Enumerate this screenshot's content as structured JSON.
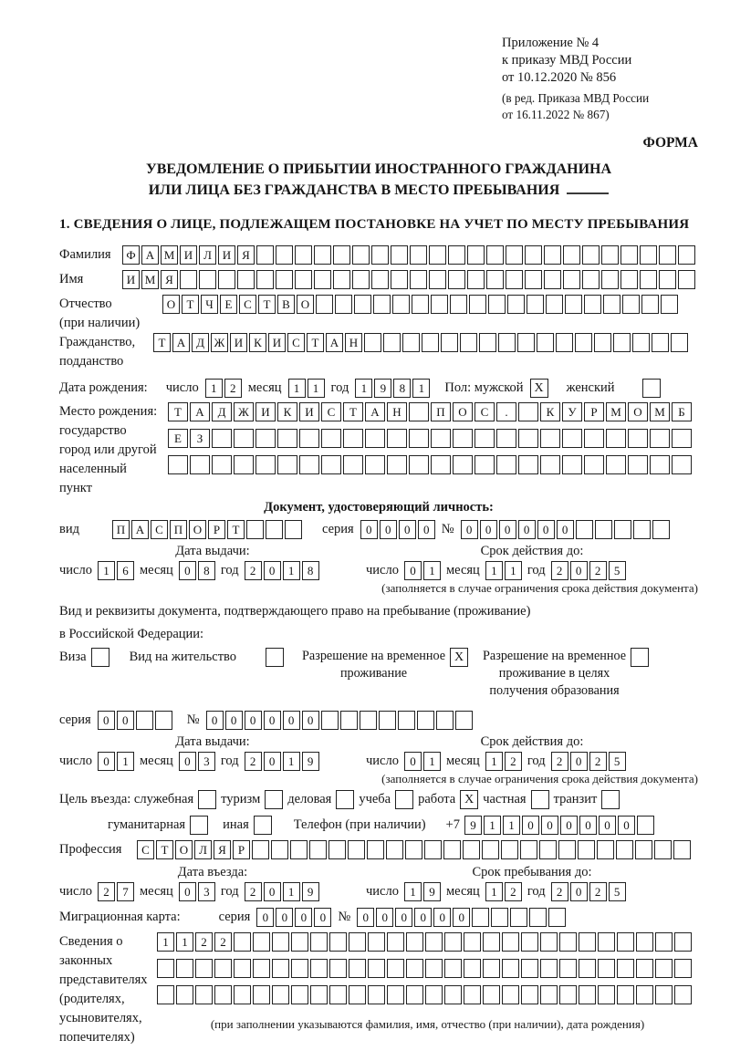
{
  "header": {
    "line1": "Приложение № 4",
    "line2": "к приказу МВД России",
    "line3": "от 10.12.2020 № 856",
    "note1": "(в ред. Приказа МВД России",
    "note2": "от 16.11.2022 № 867)",
    "form_label": "ФОРМА"
  },
  "title": {
    "line1": "УВЕДОМЛЕНИЕ О ПРИБЫТИИ ИНОСТРАННОГО ГРАЖДАНИНА",
    "line2": "ИЛИ ЛИЦА БЕЗ ГРАЖДАНСТВА В МЕСТО ПРЕБЫВАНИЯ"
  },
  "section1_heading": "1. СВЕДЕНИЯ О ЛИЦЕ, ПОДЛЕЖАЩЕМ ПОСТАНОВКЕ НА УЧЕТ ПО МЕСТУ ПРЕБЫВАНИЯ",
  "form_lines": [
    {
      "t": "row",
      "mt": 0,
      "label": [
        "Фамилия"
      ],
      "labelw": 62,
      "items": [
        {
          "t": "cells",
          "v": "ФАМИЛИЯ",
          "n": 30,
          "name": "surname-cells"
        }
      ]
    },
    {
      "t": "row",
      "mt": 6,
      "label": [
        "Имя"
      ],
      "labelw": 62,
      "items": [
        {
          "t": "cells",
          "v": "ИМЯ",
          "n": 30,
          "name": "firstname-cells"
        }
      ]
    },
    {
      "t": "row",
      "mt": 6,
      "label": [
        "Отчество",
        "(при наличии)"
      ],
      "labelw": 106,
      "items": [
        {
          "t": "cells",
          "v": "ОТЧЕСТВО",
          "n": 27,
          "name": "patronymic-cells"
        }
      ]
    },
    {
      "t": "row",
      "mt": 0,
      "label": [
        "Гражданство,",
        "подданство"
      ],
      "labelw": 96,
      "items": [
        {
          "t": "cells",
          "v": "ТАДЖИКИСТАН",
          "n": 28,
          "name": "citizenship-cells"
        }
      ]
    },
    {
      "t": "row",
      "mt": 8,
      "items": [
        {
          "t": "txt",
          "v": "Дата рождения:"
        },
        {
          "t": "gap",
          "w": 6
        },
        {
          "t": "txt",
          "v": "число"
        },
        {
          "t": "cells",
          "v": "12",
          "n": 2,
          "name": "birth-day-cells"
        },
        {
          "t": "txt",
          "v": "месяц"
        },
        {
          "t": "cells",
          "v": "11",
          "n": 2,
          "name": "birth-month-cells"
        },
        {
          "t": "txt",
          "v": "год"
        },
        {
          "t": "cells",
          "v": "1981",
          "n": 4,
          "name": "birth-year-cells"
        },
        {
          "t": "gap",
          "w": 2
        },
        {
          "t": "txt",
          "v": "Пол: мужской"
        },
        {
          "t": "cb",
          "x": true,
          "name": "gender-male-checkbox"
        },
        {
          "t": "gap",
          "w": 6
        },
        {
          "t": "txt",
          "v": "женский"
        },
        {
          "t": "gap",
          "w": 16
        },
        {
          "t": "cb",
          "x": false,
          "name": "gender-female-checkbox"
        }
      ]
    },
    {
      "t": "block",
      "mt": 5,
      "label": [
        "Место рождения:",
        "государство",
        "город или другой",
        "населенный пункт"
      ],
      "labelw": 112,
      "rows": [
        {
          "v": "ТАДЖИКИСТАН ПОС. КУРМОМБ",
          "n": 24,
          "cell": 22,
          "name": "birthplace-row1-cells"
        },
        {
          "v": "ЕЗ",
          "n": 24,
          "cell": 22,
          "name": "birthplace-row2-cells"
        },
        {
          "v": "",
          "n": 24,
          "cell": 22,
          "name": "birthplace-row3-cells"
        }
      ]
    },
    {
      "t": "center",
      "mt": 1,
      "v": "Документ, удостоверяющий личность:",
      "name": "identity-doc-heading"
    },
    {
      "t": "row",
      "mt": 4,
      "items": [
        {
          "t": "txt",
          "v": "вид"
        },
        {
          "t": "gap",
          "w": 22
        },
        {
          "t": "cells",
          "v": "ПАСПОРТ",
          "n": 10,
          "name": "doc-type-cells"
        },
        {
          "t": "gap",
          "w": 8
        },
        {
          "t": "txt",
          "v": "серия"
        },
        {
          "t": "cells",
          "v": "0000",
          "n": 4,
          "name": "doc-series-cells"
        },
        {
          "t": "txt",
          "v": "№"
        },
        {
          "t": "cells",
          "v": "000000",
          "n": 11,
          "name": "doc-number-cells"
        }
      ]
    },
    {
      "t": "split",
      "mt": 4,
      "left": "Дата выдачи:",
      "right": "Срок действия до:"
    },
    {
      "t": "dualrow",
      "mt": 2,
      "left": [
        {
          "t": "txt",
          "v": "число"
        },
        {
          "t": "cells",
          "v": "16",
          "n": 2,
          "name": "doc-issue-day-cells"
        },
        {
          "t": "txt",
          "v": "месяц"
        },
        {
          "t": "cells",
          "v": "08",
          "n": 2,
          "name": "doc-issue-month-cells"
        },
        {
          "t": "txt",
          "v": "год"
        },
        {
          "t": "cells",
          "v": "2018",
          "n": 4,
          "name": "doc-issue-year-cells"
        }
      ],
      "right": [
        {
          "t": "txt",
          "v": "число"
        },
        {
          "t": "cells",
          "v": "01",
          "n": 2,
          "name": "doc-valid-day-cells"
        },
        {
          "t": "txt",
          "v": "месяц"
        },
        {
          "t": "cells",
          "v": "11",
          "n": 2,
          "name": "doc-valid-month-cells"
        },
        {
          "t": "txt",
          "v": "год"
        },
        {
          "t": "cells",
          "v": "2025",
          "n": 4,
          "name": "doc-valid-year-cells"
        }
      ]
    },
    {
      "t": "caption",
      "mt": 1,
      "v": "(заполняется в случае ограничения срока действия документа)",
      "align": "right"
    },
    {
      "t": "para",
      "mt": 9,
      "v": "Вид и реквизиты документа, подтверждающего право на пребывание (проживание)"
    },
    {
      "t": "para",
      "mt": 6,
      "v": "в Российской Федерации:"
    },
    {
      "t": "row",
      "mt": 5,
      "g": 5,
      "items": [
        {
          "t": "txt",
          "v": "Виза"
        },
        {
          "t": "cb",
          "x": false,
          "name": "visa-checkbox"
        },
        {
          "t": "gap",
          "w": 12
        },
        {
          "t": "txt",
          "v": "Вид на жительство"
        },
        {
          "t": "gap",
          "w": 22
        },
        {
          "t": "cb",
          "x": false,
          "name": "residence-permit-checkbox"
        },
        {
          "t": "gap",
          "w": 10
        },
        {
          "t": "stack",
          "lines": [
            "Разрешение на временное",
            "проживание"
          ]
        },
        {
          "t": "cb",
          "x": true,
          "name": "temp-residence-permit-checkbox"
        },
        {
          "t": "gap",
          "w": 6
        },
        {
          "t": "stack",
          "lines": [
            "Разрешение на временное",
            "проживание в целях",
            "получения образования"
          ]
        },
        {
          "t": "cb",
          "x": false,
          "name": "temp-residence-education-checkbox"
        }
      ]
    },
    {
      "t": "row",
      "mt": 12,
      "items": [
        {
          "t": "txt",
          "v": "серия"
        },
        {
          "t": "cells",
          "v": "00",
          "n": 4,
          "name": "permit-series-cells"
        },
        {
          "t": "gap",
          "w": 2
        },
        {
          "t": "txt",
          "v": "№"
        },
        {
          "t": "cells",
          "v": "000000",
          "n": 14,
          "name": "permit-number-cells"
        }
      ]
    },
    {
      "t": "split",
      "mt": 4,
      "left": "Дата выдачи:",
      "right": "Срок действия до:"
    },
    {
      "t": "dualrow",
      "mt": 2,
      "left": [
        {
          "t": "txt",
          "v": "число"
        },
        {
          "t": "cells",
          "v": "01",
          "n": 2,
          "name": "permit-issue-day-cells"
        },
        {
          "t": "txt",
          "v": "месяц"
        },
        {
          "t": "cells",
          "v": "03",
          "n": 2,
          "name": "permit-issue-month-cells"
        },
        {
          "t": "txt",
          "v": "год"
        },
        {
          "t": "cells",
          "v": "2019",
          "n": 4,
          "name": "permit-issue-year-cells"
        }
      ],
      "right": [
        {
          "t": "txt",
          "v": "число"
        },
        {
          "t": "cells",
          "v": "01",
          "n": 2,
          "name": "permit-valid-day-cells"
        },
        {
          "t": "txt",
          "v": "месяц"
        },
        {
          "t": "cells",
          "v": "12",
          "n": 2,
          "name": "permit-valid-month-cells"
        },
        {
          "t": "txt",
          "v": "год"
        },
        {
          "t": "cells",
          "v": "2025",
          "n": 4,
          "name": "permit-valid-year-cells"
        }
      ]
    },
    {
      "t": "caption",
      "mt": 1,
      "v": "(заполняется в случае ограничения срока действия документа)",
      "align": "right"
    },
    {
      "t": "row",
      "mt": 5,
      "g": 5,
      "items": [
        {
          "t": "txt",
          "v": "Цель въезда: служебная"
        },
        {
          "t": "cb",
          "x": false,
          "name": "purpose-official-checkbox"
        },
        {
          "t": "txt",
          "v": "туризм"
        },
        {
          "t": "cb",
          "x": false,
          "name": "purpose-tourism-checkbox"
        },
        {
          "t": "txt",
          "v": "деловая"
        },
        {
          "t": "cb",
          "x": false,
          "name": "purpose-business-checkbox"
        },
        {
          "t": "txt",
          "v": "учеба"
        },
        {
          "t": "cb",
          "x": false,
          "name": "purpose-study-checkbox"
        },
        {
          "t": "txt",
          "v": "работа"
        },
        {
          "t": "cb",
          "x": true,
          "name": "purpose-work-checkbox"
        },
        {
          "t": "txt",
          "v": "частная"
        },
        {
          "t": "cb",
          "x": false,
          "name": "purpose-private-checkbox"
        },
        {
          "t": "txt",
          "v": "транзит"
        },
        {
          "t": "cb",
          "x": false,
          "name": "purpose-transit-checkbox"
        }
      ]
    },
    {
      "t": "row",
      "mt": 7,
      "g": 5,
      "items": [
        {
          "t": "gap",
          "w": 48
        },
        {
          "t": "txt",
          "v": "гуманитарная"
        },
        {
          "t": "cb",
          "x": false,
          "name": "purpose-humanitarian-checkbox"
        },
        {
          "t": "gap",
          "w": 6
        },
        {
          "t": "txt",
          "v": "иная"
        },
        {
          "t": "cb",
          "x": false,
          "name": "purpose-other-checkbox"
        },
        {
          "t": "gap",
          "w": 14
        },
        {
          "t": "txt",
          "v": "Телефон (при наличии)"
        },
        {
          "t": "gap",
          "w": 12
        },
        {
          "t": "txt",
          "v": "+7"
        },
        {
          "t": "cells",
          "v": "911000000",
          "n": 10,
          "name": "phone-cells"
        }
      ]
    },
    {
      "t": "row",
      "mt": 6,
      "label": [
        "Профессия"
      ],
      "labelw": 78,
      "items": [
        {
          "t": "cells",
          "v": "СТОЛЯР",
          "n": 29,
          "name": "profession-cells"
        }
      ]
    },
    {
      "t": "split",
      "mt": 5,
      "left": "Дата въезда:",
      "right": "Срок пребывания до:"
    },
    {
      "t": "dualrow",
      "mt": 2,
      "left": [
        {
          "t": "txt",
          "v": "число"
        },
        {
          "t": "cells",
          "v": "27",
          "n": 2,
          "name": "entry-day-cells"
        },
        {
          "t": "txt",
          "v": "месяц"
        },
        {
          "t": "cells",
          "v": "03",
          "n": 2,
          "name": "entry-month-cells"
        },
        {
          "t": "txt",
          "v": "год"
        },
        {
          "t": "cells",
          "v": "2019",
          "n": 4,
          "name": "entry-year-cells"
        }
      ],
      "right": [
        {
          "t": "txt",
          "v": "число"
        },
        {
          "t": "cells",
          "v": "19",
          "n": 2,
          "name": "stay-until-day-cells"
        },
        {
          "t": "txt",
          "v": "месяц"
        },
        {
          "t": "cells",
          "v": "12",
          "n": 2,
          "name": "stay-until-month-cells"
        },
        {
          "t": "txt",
          "v": "год"
        },
        {
          "t": "cells",
          "v": "2025",
          "n": 4,
          "name": "stay-until-year-cells"
        }
      ]
    },
    {
      "t": "row",
      "mt": 7,
      "items": [
        {
          "t": "txt",
          "v": "Миграционная карта:"
        },
        {
          "t": "gap",
          "w": 28
        },
        {
          "t": "txt",
          "v": "серия"
        },
        {
          "t": "cells",
          "v": "0000",
          "n": 4,
          "name": "migration-card-series-cells"
        },
        {
          "t": "txt",
          "v": "№"
        },
        {
          "t": "cells",
          "v": "000000",
          "n": 11,
          "name": "migration-card-number-cells"
        }
      ]
    },
    {
      "t": "block",
      "mt": 6,
      "label": [
        "Сведения о",
        "законных",
        "представителях",
        "(родителях,",
        "усыновителях,",
        "попечителях)"
      ],
      "labelw": 100,
      "rows": [
        {
          "v": "1122",
          "n": 28,
          "name": "representatives-row1-cells"
        },
        {
          "v": "",
          "n": 28,
          "name": "representatives-row2-cells"
        },
        {
          "v": "",
          "n": 28,
          "name": "representatives-row3-cells"
        }
      ],
      "caption": "(при заполнении указываются фамилия, имя, отчество (при наличии), дата рождения)"
    }
  ]
}
